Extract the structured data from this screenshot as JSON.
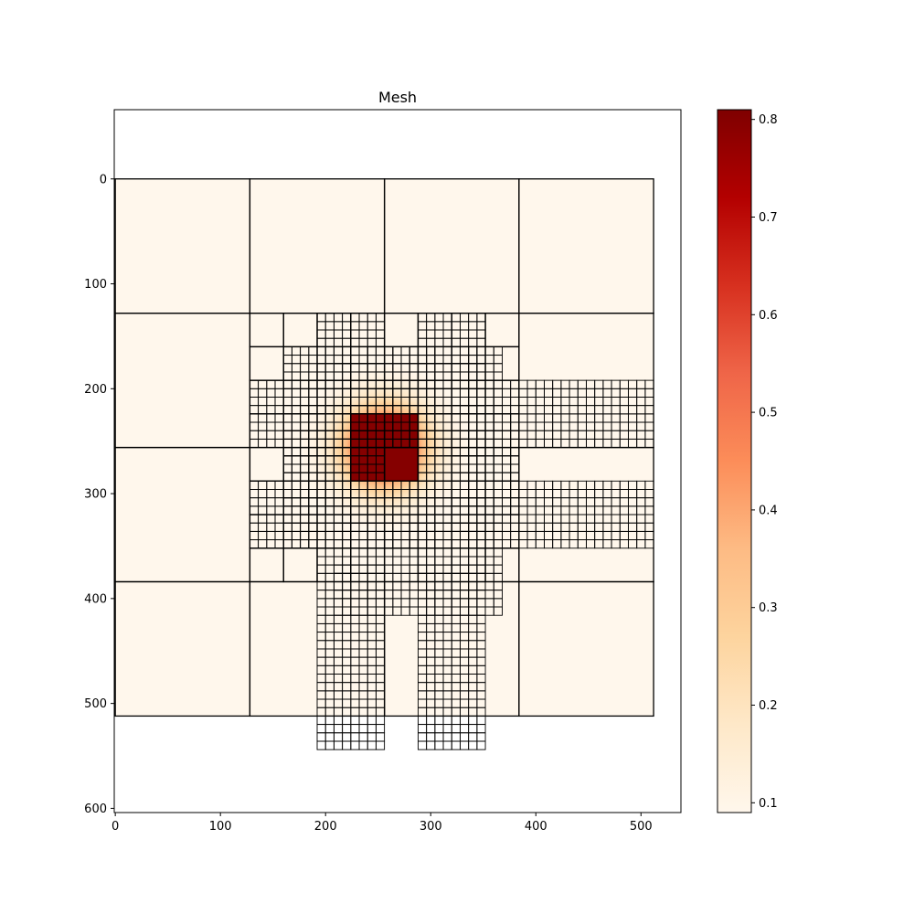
{
  "chart_data": {
    "type": "heatmap",
    "title": "Mesh",
    "xlabel": "",
    "ylabel": "",
    "xlim": [
      -1,
      538
    ],
    "ylim": [
      604,
      -66
    ],
    "y_inverted": true,
    "x_ticks": [
      0,
      100,
      200,
      300,
      400,
      500
    ],
    "y_ticks": [
      0,
      100,
      200,
      300,
      400,
      500,
      600
    ],
    "domain": [
      0,
      512
    ],
    "field": {
      "description_of_values": "gaussian bump",
      "center": [
        256,
        256
      ],
      "min": 0.09,
      "max": 0.81,
      "plateau_cells": [
        [
          224,
          224,
          32
        ],
        [
          256,
          224,
          32
        ],
        [
          224,
          256,
          32
        ],
        [
          256,
          256,
          32
        ]
      ]
    },
    "mesh": {
      "coarse_cell_size": 128,
      "medium_cell_size": 32,
      "fine_cell_size": 4,
      "medium_fine_cell_size": 8,
      "fine_region_blocks": [
        [
          192,
          128,
          2,
          6
        ],
        [
          288,
          128,
          2,
          6
        ],
        [
          208,
          160,
          5,
          3
        ],
        [
          128,
          192,
          6,
          2
        ],
        [
          320,
          192,
          6,
          2
        ],
        [
          160,
          224,
          2,
          2
        ],
        [
          320,
          224,
          2,
          2
        ],
        [
          160,
          256,
          2,
          2
        ],
        [
          320,
          256,
          2,
          2
        ],
        [
          128,
          288,
          6,
          2
        ],
        [
          320,
          288,
          6,
          2
        ],
        [
          208,
          320,
          5,
          3
        ],
        [
          192,
          352,
          2,
          6
        ],
        [
          288,
          352,
          2,
          6
        ]
      ]
    },
    "colorbar": {
      "colormap": "OrRd",
      "min": 0.09,
      "max": 0.81,
      "ticks": [
        0.1,
        0.2,
        0.3,
        0.4,
        0.5,
        0.6,
        0.7,
        0.8
      ],
      "tick_labels": [
        "0.1",
        "0.2",
        "0.3",
        "0.4",
        "0.5",
        "0.6",
        "0.7",
        "0.8"
      ],
      "colors": [
        "#fff7ec",
        "#fee8c8",
        "#fdd49e",
        "#fdbb84",
        "#fc8d59",
        "#ef6548",
        "#d7301f",
        "#b30000",
        "#7f0000"
      ]
    },
    "x_tick_labels": [
      "0",
      "100",
      "200",
      "300",
      "400",
      "500"
    ],
    "y_tick_labels": [
      "0",
      "100",
      "200",
      "300",
      "400",
      "500",
      "600"
    ]
  }
}
